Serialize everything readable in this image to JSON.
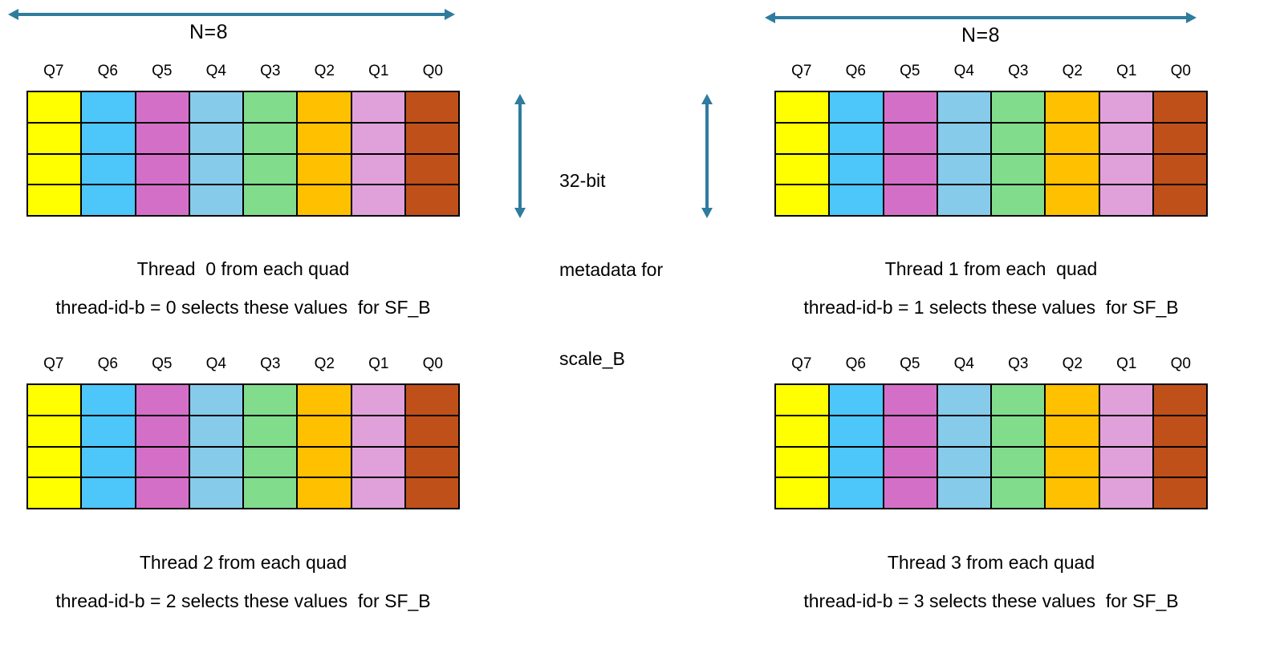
{
  "accent_color": "#2E7C9E",
  "n_arrow_label": "N=8",
  "grid": {
    "rows": 4,
    "labels": [
      "Q7",
      "Q6",
      "Q5",
      "Q4",
      "Q3",
      "Q2",
      "Q1",
      "Q0"
    ],
    "colors": [
      "#FFFF00",
      "#4DC6FA",
      "#D46FC8",
      "#86CBE9",
      "#81DD8C",
      "#FFC000",
      "#E0A1DB",
      "#C0501A"
    ]
  },
  "metadata_note": {
    "line1": "32-bit",
    "line2": "metadata for",
    "line3": "scale_B"
  },
  "panels": [
    {
      "caption_line1": "Thread  0 from each quad",
      "caption_line2": "thread-id-b = 0 selects these values  for SF_B"
    },
    {
      "caption_line1": "Thread 1 from each  quad",
      "caption_line2": "thread-id-b = 1 selects these values  for SF_B"
    },
    {
      "caption_line1": "Thread 2 from each quad",
      "caption_line2": "thread-id-b = 2 selects these values  for SF_B"
    },
    {
      "caption_line1": "Thread 3 from each quad",
      "caption_line2": "thread-id-b = 3 selects these values  for SF_B"
    }
  ]
}
